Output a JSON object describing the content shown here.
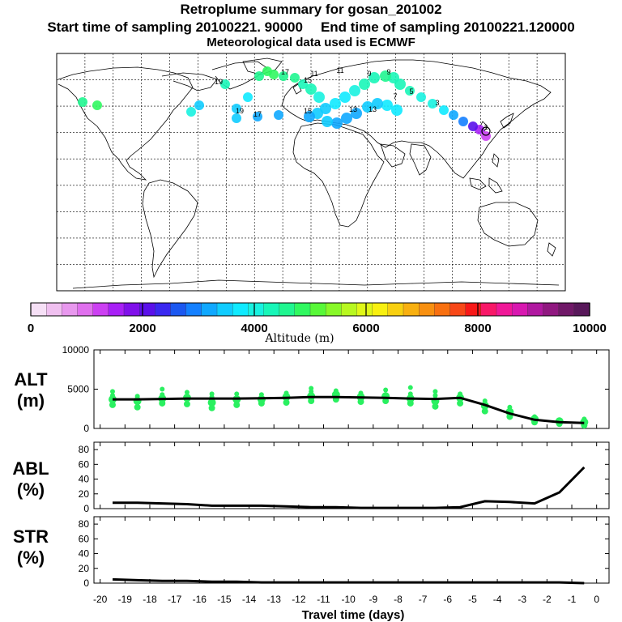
{
  "header": {
    "title": "Retroplume summary for gosan_201002",
    "start_label": "Start time of sampling 20100221. 90000",
    "end_label": "End time of sampling 20100221.120000",
    "met_label": "Meteorological data used is ECMWF"
  },
  "colorbar": {
    "ticks": [
      "0",
      "2000",
      "4000",
      "6000",
      "8000",
      "10000"
    ],
    "label": "Altitude (m)",
    "colors": [
      "#f6e0f6",
      "#f0c0f0",
      "#e898ee",
      "#e070ee",
      "#cc40f2",
      "#a820f6",
      "#8010ea",
      "#5a10ea",
      "#3a28f0",
      "#1c58f0",
      "#1480ff",
      "#10a8ff",
      "#10ccff",
      "#10eaff",
      "#18f2e0",
      "#18f6b8",
      "#20f690",
      "#30f860",
      "#58f838",
      "#88f828",
      "#b8f820",
      "#e0f818",
      "#f8f010",
      "#f8d010",
      "#f8b010",
      "#f89010",
      "#f87010",
      "#f84818",
      "#f81818",
      "#f81868",
      "#f01898",
      "#d818b0",
      "#b018a0",
      "#901880",
      "#701868",
      "#58185a"
    ]
  },
  "map": {
    "trajectory_labels": [
      "11",
      "13",
      "15",
      "17",
      "19",
      "9",
      "7",
      "5",
      "3",
      "1",
      "15",
      "17",
      "19",
      "13",
      "11",
      "9"
    ]
  },
  "chart_data": [
    {
      "type": "scatter+line",
      "name": "ALT",
      "ylabel": "ALT (m)",
      "ylim": [
        0,
        10000
      ],
      "yticks": [
        "0",
        "5000",
        "10000"
      ],
      "x": [
        -19.5,
        -18.5,
        -17.5,
        -16.5,
        -15.5,
        -14.5,
        -13.5,
        -12.5,
        -11.5,
        -10.5,
        -9.5,
        -8.5,
        -7.5,
        -6.5,
        -5.5,
        -4.5,
        -3.5,
        -2.5,
        -1.5,
        -0.5
      ],
      "line_values": [
        3700,
        3700,
        3750,
        3800,
        3800,
        3800,
        3850,
        3900,
        4000,
        4000,
        3950,
        3900,
        3800,
        3750,
        3900,
        3000,
        1900,
        1100,
        800,
        700
      ],
      "scatter_values": [
        [
          3000,
          3700,
          4200,
          4700
        ],
        [
          2700,
          3500,
          4100
        ],
        [
          3200,
          3800,
          4300,
          5000
        ],
        [
          3100,
          3900,
          4600
        ],
        [
          2600,
          3300,
          4000,
          4400
        ],
        [
          3000,
          3700,
          4400
        ],
        [
          3200,
          3700,
          4300
        ],
        [
          3300,
          4000,
          4500
        ],
        [
          3500,
          4100,
          4700,
          5100
        ],
        [
          3700,
          4300,
          4800
        ],
        [
          3400,
          4000,
          4500
        ],
        [
          3500,
          4100,
          4900
        ],
        [
          3200,
          3800,
          4400,
          5200
        ],
        [
          2800,
          3500,
          4200,
          4700
        ],
        [
          3200,
          3900,
          4400
        ],
        [
          2200,
          2900,
          3500
        ],
        [
          1500,
          2100,
          2700
        ],
        [
          800,
          1200,
          1500
        ],
        [
          600,
          900,
          1100
        ],
        [
          400,
          800,
          1200
        ]
      ]
    },
    {
      "type": "line",
      "name": "ABL",
      "ylabel": "ABL (%)",
      "ylim": [
        0,
        90
      ],
      "yticks": [
        "0",
        "20",
        "40",
        "60",
        "80"
      ],
      "x": [
        -19.5,
        -18.5,
        -17.5,
        -16.5,
        -15.5,
        -14.5,
        -13.5,
        -12.5,
        -11.5,
        -10.5,
        -9.5,
        -8.5,
        -7.5,
        -6.5,
        -5.5,
        -4.5,
        -3.5,
        -2.5,
        -1.5,
        -0.5
      ],
      "values": [
        8,
        8,
        7,
        6,
        4,
        4,
        4,
        3,
        2,
        2,
        1,
        1,
        1,
        1,
        2,
        10,
        9,
        7,
        22,
        56
      ]
    },
    {
      "type": "line",
      "name": "STR",
      "ylabel": "STR (%)",
      "ylim": [
        0,
        90
      ],
      "yticks": [
        "0",
        "20",
        "40",
        "60",
        "80"
      ],
      "x": [
        -19.5,
        -18.5,
        -17.5,
        -16.5,
        -15.5,
        -14.5,
        -13.5,
        -12.5,
        -11.5,
        -10.5,
        -9.5,
        -8.5,
        -7.5,
        -6.5,
        -5.5,
        -4.5,
        -3.5,
        -2.5,
        -1.5,
        -0.5
      ],
      "values": [
        5,
        4,
        3,
        3,
        2,
        2,
        1,
        1,
        1,
        1,
        1,
        1,
        1,
        1,
        1,
        1,
        1,
        1,
        1,
        0
      ],
      "xlabel": "Travel time (days)",
      "xticks": [
        "-20",
        "-19",
        "-18",
        "-17",
        "-16",
        "-15",
        "-14",
        "-13",
        "-12",
        "-11",
        "-10",
        "-9",
        "-8",
        "-7",
        "-6",
        "-5",
        "-4",
        "-3",
        "-2",
        "-1",
        "0"
      ]
    }
  ],
  "panel_labels": {
    "alt_top": "ALT",
    "alt_unit": "(m)",
    "abl_top": "ABL",
    "abl_unit": "(%)",
    "str_top": "STR",
    "str_unit": "(%)"
  }
}
